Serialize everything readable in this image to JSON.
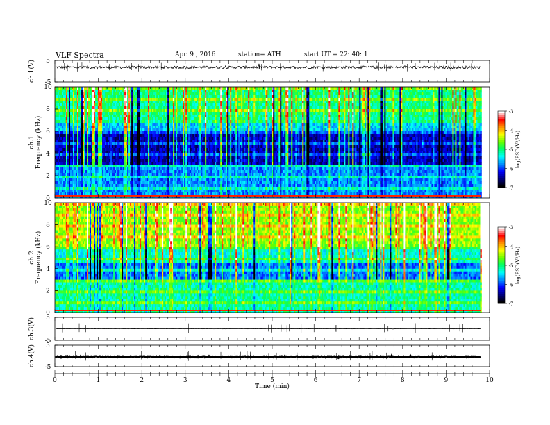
{
  "header": {
    "title": "VLF  Spectra",
    "date": "Apr. 9  , 2016",
    "station": "station= ATH",
    "start": "start  UT  =    22: 40: 1"
  },
  "chart_data": [
    {
      "type": "line",
      "panel": "ch1-waveform",
      "ylabel": "ch.1(V)",
      "ylim": [
        -5,
        5
      ],
      "yticks": [
        "5",
        "-5"
      ],
      "series_color": "#000000",
      "baseline": 1.8,
      "amplitude": 0.6
    },
    {
      "type": "heatmap",
      "panel": "ch1-spectrogram",
      "ylabel": [
        "ch.1",
        "Frequency  (kHz)"
      ],
      "ylim": [
        0,
        10
      ],
      "yticks": [
        "0",
        "2",
        "4",
        "6",
        "8",
        "10"
      ],
      "colorbar": {
        "label": "log(PSD(V²/Hz)",
        "ticks": [
          "-3",
          "-4",
          "-5",
          "-6",
          "-7"
        ],
        "range": [
          -7,
          -3
        ]
      }
    },
    {
      "type": "heatmap",
      "panel": "ch2-spectrogram",
      "ylabel": [
        "ch.2",
        "Frequency  (kHz)"
      ],
      "ylim": [
        0,
        10
      ],
      "yticks": [
        "0",
        "2",
        "4",
        "6",
        "8",
        "10"
      ],
      "colorbar": {
        "label": "log(PSD(V²/Hz)",
        "ticks": [
          "-3",
          "-4",
          "-5",
          "-6",
          "-7"
        ],
        "range": [
          -7,
          -3
        ]
      }
    },
    {
      "type": "line",
      "panel": "ch3-waveform",
      "ylabel": "ch.3(V)",
      "ylim": [
        -5,
        5
      ],
      "yticks": [
        "5",
        "-5"
      ],
      "series_color": "#000000",
      "baseline": 0.0,
      "amplitude": 0.05
    },
    {
      "type": "line",
      "panel": "ch4-waveform",
      "ylabel": "ch.4(V)",
      "ylim": [
        -5,
        5
      ],
      "yticks": [
        "5",
        "-5"
      ],
      "series_color": "#000000",
      "baseline": -0.4,
      "amplitude": 0.25
    }
  ],
  "x_axis": {
    "label": "Time  (min)",
    "xlim": [
      0,
      10
    ],
    "ticks": [
      "0",
      "1",
      "2",
      "3",
      "4",
      "5",
      "6",
      "7",
      "8",
      "9",
      "10"
    ],
    "data_end": 9.8
  },
  "colors": {
    "colormap": [
      "#000000",
      "#00007a",
      "#0000ff",
      "#0088ff",
      "#00ffff",
      "#00ff66",
      "#66ff00",
      "#ffff00",
      "#ff8800",
      "#ff0000",
      "#ffffff"
    ]
  }
}
